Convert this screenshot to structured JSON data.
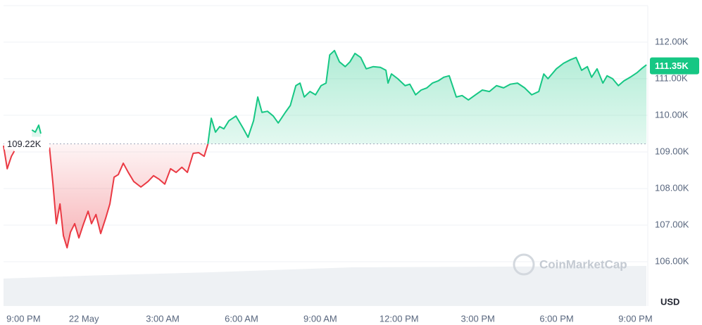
{
  "chart_data": {
    "type": "line",
    "x": [
      -3.06,
      -2.92,
      -2.76,
      -2.65,
      -2.2,
      -1.98,
      -1.85,
      -1.72,
      -1.64,
      -1.5,
      -1.31,
      -1.18,
      -1.05,
      -0.91,
      -0.78,
      -0.64,
      -0.51,
      -0.35,
      -0.19,
      -0.03,
      0.16,
      0.29,
      0.46,
      0.64,
      0.83,
      0.99,
      1.15,
      1.31,
      1.5,
      1.69,
      1.9,
      2.17,
      2.44,
      2.65,
      2.87,
      3.08,
      3.3,
      3.51,
      3.73,
      3.94,
      4.16,
      4.37,
      4.58,
      4.72,
      4.85,
      5.01,
      5.17,
      5.33,
      5.52,
      5.79,
      6.06,
      6.25,
      6.46,
      6.62,
      6.78,
      6.99,
      7.21,
      7.4,
      7.67,
      7.86,
      8.07,
      8.23,
      8.39,
      8.61,
      8.82,
      9.03,
      9.22,
      9.36,
      9.54,
      9.73,
      9.95,
      10.13,
      10.32,
      10.54,
      10.75,
      11.02,
      11.29,
      11.5,
      11.58,
      11.71,
      11.95,
      12.23,
      12.41,
      12.63,
      12.84,
      13.06,
      13.27,
      13.49,
      13.7,
      13.91,
      14.18,
      14.4,
      14.64,
      14.91,
      15.17,
      15.44,
      15.71,
      15.98,
      16.24,
      16.51,
      16.78,
      17.05,
      17.32,
      17.51,
      17.67,
      17.99,
      18.26,
      18.53,
      18.74,
      18.95,
      19.17,
      19.33,
      19.54,
      19.76,
      19.92,
      20.13,
      20.35,
      20.56,
      20.8,
      21.07,
      21.26,
      21.42
    ],
    "series": [
      {
        "values": [
          109170,
          108540,
          108880,
          109020,
          null,
          109600,
          109540,
          109730,
          109500,
          null,
          109120,
          108150,
          107040,
          107580,
          106710,
          106380,
          106810,
          107040,
          106650,
          107000,
          107380,
          107040,
          107290,
          106770,
          107190,
          107580,
          108310,
          108380,
          108690,
          108440,
          108190,
          108040,
          108190,
          108350,
          108250,
          108120,
          108540,
          108440,
          108580,
          108440,
          108960,
          108980,
          108880,
          109210,
          109920,
          109540,
          109690,
          109630,
          109850,
          109980,
          109650,
          109400,
          109850,
          110500,
          110080,
          110110,
          109980,
          109790,
          110080,
          110270,
          110810,
          110880,
          110500,
          110650,
          110560,
          110810,
          110880,
          111650,
          111770,
          111460,
          111330,
          111460,
          111690,
          111580,
          111270,
          111330,
          111310,
          111230,
          110880,
          111130,
          111000,
          110810,
          110850,
          110560,
          110690,
          110750,
          110880,
          110940,
          111040,
          111080,
          110500,
          110540,
          110420,
          110560,
          110690,
          110650,
          110810,
          110750,
          110850,
          110880,
          110750,
          110560,
          110650,
          111130,
          111000,
          111270,
          111420,
          111520,
          111580,
          111230,
          111330,
          111040,
          111270,
          110880,
          111080,
          111000,
          110810,
          110940,
          111040,
          111170,
          111290,
          111380
        ]
      }
    ],
    "up_color": "#16c784",
    "down_color": "#ea3943",
    "baseline": {
      "value": 109220,
      "label": "109.22K"
    },
    "last_price": {
      "value": 111350,
      "label": "111.35K"
    },
    "xlim": [
      -3.06,
      21.47
    ],
    "xticks": [
      {
        "value": -2.3,
        "label": "9:00 PM"
      },
      {
        "value": 0,
        "label": "22 May"
      },
      {
        "value": 3,
        "label": "3:00 AM"
      },
      {
        "value": 6,
        "label": "6:00 AM"
      },
      {
        "value": 9,
        "label": "9:00 AM"
      },
      {
        "value": 12,
        "label": "12:00 PM"
      },
      {
        "value": 15,
        "label": "3:00 PM"
      },
      {
        "value": 18,
        "label": "6:00 PM"
      },
      {
        "value": 21,
        "label": "9:00 PM"
      }
    ],
    "ylim": [
      104790,
      113150
    ],
    "yticks": [
      {
        "value": 106000,
        "label": "106.00K"
      },
      {
        "value": 107000,
        "label": "107.00K"
      },
      {
        "value": 108000,
        "label": "108.00K"
      },
      {
        "value": 109000,
        "label": "109.00K"
      },
      {
        "value": 110000,
        "label": "110.00K"
      },
      {
        "value": 111000,
        "label": "111.00K"
      },
      {
        "value": 112000,
        "label": "112.00K"
      }
    ],
    "y_unit": "USD",
    "watermark": "CoinMarketCap",
    "grid": true
  }
}
